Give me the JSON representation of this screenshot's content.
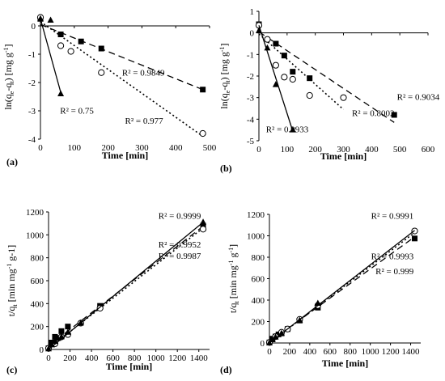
{
  "chart_data": [
    {
      "type": "scatter",
      "panel_label": "(a)",
      "xlabel": "Time [min]",
      "ylabel_pre": "ln(q",
      "ylabel_sub1": "e",
      "ylabel_mid": "-q",
      "ylabel_sub2": "t",
      "ylabel_post": ") [mg g",
      "ylabel_sup": "-1",
      "ylabel_end": "]",
      "xlim": [
        0,
        500
      ],
      "ylim": [
        -4,
        0.4
      ],
      "xticks": [
        0,
        100,
        200,
        300,
        400,
        500
      ],
      "yticks": [
        -4,
        -3,
        -2,
        -1,
        0
      ],
      "series": [
        {
          "marker": "square",
          "line": "dashed",
          "x": [
            0,
            60,
            120,
            180,
            480
          ],
          "y": [
            0.25,
            -0.3,
            -0.55,
            -0.8,
            -2.25
          ],
          "fit": [
            [
              0,
              0.05
            ],
            [
              480,
              -2.25
            ]
          ]
        },
        {
          "marker": "circle",
          "line": "dotted",
          "x": [
            0,
            60,
            90,
            180,
            480
          ],
          "y": [
            0.3,
            -0.7,
            -0.9,
            -1.65,
            -3.8
          ],
          "fit": [
            [
              0,
              0.15
            ],
            [
              480,
              -3.9
            ]
          ]
        },
        {
          "marker": "triangle",
          "line": "solid",
          "x": [
            0,
            30,
            60
          ],
          "y": [
            0.25,
            0.2,
            -2.4
          ],
          "fit": [
            [
              0,
              0.25
            ],
            [
              60,
              -2.35
            ]
          ]
        }
      ],
      "annotations": [
        {
          "text": "R² = 0.9849",
          "x": 385,
          "y": -1.75
        },
        {
          "text": "R² = 0.75",
          "x": 58,
          "y": -3.1
        },
        {
          "text": "R² = 0.977",
          "x": 250,
          "y": -3.45
        }
      ]
    },
    {
      "type": "scatter",
      "panel_label": "(b)",
      "xlabel": "Time [min]",
      "ylabel_pre": "ln(q",
      "ylabel_sub1": "e",
      "ylabel_mid": "-q",
      "ylabel_sub2": "t",
      "ylabel_post": ") [mg g",
      "ylabel_sup": "-1",
      "ylabel_end": "]",
      "xlim": [
        0,
        600
      ],
      "ylim": [
        -5,
        1
      ],
      "xticks": [
        0,
        100,
        200,
        300,
        400,
        500,
        600
      ],
      "yticks": [
        -5,
        -4,
        -3,
        -2,
        -1,
        0,
        1
      ],
      "series": [
        {
          "marker": "square",
          "line": "dashed",
          "x": [
            0,
            60,
            90,
            120,
            180,
            480
          ],
          "y": [
            0.4,
            -0.5,
            -1.05,
            -1.8,
            -2.1,
            -3.8
          ],
          "fit": [
            [
              0,
              0.05
            ],
            [
              480,
              -4.15
            ]
          ]
        },
        {
          "marker": "circle",
          "line": "dotted",
          "x": [
            0,
            30,
            60,
            90,
            120,
            180,
            300
          ],
          "y": [
            0.35,
            -0.3,
            -1.5,
            -2.05,
            -2.15,
            -2.9,
            -3.0
          ],
          "fit": [
            [
              0,
              -0.05
            ],
            [
              300,
              -3.55
            ]
          ]
        },
        {
          "marker": "triangle",
          "line": "solid",
          "x": [
            0,
            30,
            60,
            120
          ],
          "y": [
            0.1,
            -0.7,
            -2.4,
            -4.5
          ],
          "fit": [
            [
              0,
              0.35
            ],
            [
              120,
              -4.55
            ]
          ]
        }
      ],
      "annotations": [
        {
          "text": "R² = 0.9034",
          "x": 490,
          "y": -3.1
        },
        {
          "text": "R² = 0.8002",
          "x": 330,
          "y": -3.85
        },
        {
          "text": "R² = 0.9933",
          "x": 25,
          "y": -4.6
        }
      ]
    },
    {
      "type": "scatter",
      "panel_label": "(c)",
      "xlabel": "Time [min]",
      "ylabel_pre": "t/q",
      "ylabel_sub1": "t",
      "ylabel_mid": "",
      "ylabel_sub2": "",
      "ylabel_post": " [min mg",
      "ylabel_sup": "-1",
      "ylabel_end": " g-1]",
      "xlim": [
        0,
        1500
      ],
      "ylim": [
        0,
        1200
      ],
      "xticks": [
        0,
        200,
        400,
        600,
        800,
        1000,
        1200,
        1400
      ],
      "yticks": [
        0,
        200,
        400,
        600,
        800,
        1000,
        1200
      ],
      "series": [
        {
          "marker": "square",
          "line": "dashed",
          "x": [
            0,
            30,
            60,
            90,
            120,
            180,
            480,
            1440
          ],
          "y": [
            10,
            60,
            110,
            100,
            160,
            200,
            380,
            1080
          ],
          "fit": [
            [
              0,
              30
            ],
            [
              1440,
              1075
            ]
          ]
        },
        {
          "marker": "circle",
          "line": "dotted",
          "x": [
            0,
            60,
            120,
            180,
            300,
            480,
            1440
          ],
          "y": [
            10,
            50,
            110,
            130,
            230,
            360,
            1050
          ],
          "fit": [
            [
              0,
              10
            ],
            [
              1440,
              1060
            ]
          ]
        },
        {
          "marker": "triangle",
          "line": "solid",
          "x": [
            0,
            30,
            60,
            120,
            180,
            300,
            1440
          ],
          "y": [
            5,
            40,
            70,
            110,
            150,
            230,
            1110
          ],
          "fit": [
            [
              0,
              0
            ],
            [
              1440,
              1110
            ]
          ]
        }
      ],
      "annotations": [
        {
          "text": "R² = 0.9999",
          "x": 1420,
          "y": 1140
        },
        {
          "text": "R² = 0.9952",
          "x": 1420,
          "y": 890
        },
        {
          "text": "R² = 0.9987",
          "x": 1420,
          "y": 790
        }
      ]
    },
    {
      "type": "scatter",
      "panel_label": "(d)",
      "xlabel": "Time [min]",
      "ylabel_pre": "t/q",
      "ylabel_sub1": "t",
      "ylabel_mid": "",
      "ylabel_sub2": "",
      "ylabel_post": " [min mg",
      "ylabel_sup": "-1",
      "ylabel_end": " g",
      "ylabel_sup2": "-1",
      "ylabel_end2": "]",
      "xlim": [
        0,
        1500
      ],
      "ylim": [
        0,
        1200
      ],
      "xticks": [
        0,
        200,
        400,
        600,
        800,
        1000,
        1200,
        1400
      ],
      "yticks": [
        0,
        200,
        400,
        600,
        800,
        1000,
        1200
      ],
      "series": [
        {
          "marker": "square",
          "line": "dashed",
          "x": [
            0,
            30,
            60,
            90,
            120,
            180,
            300,
            480,
            1440
          ],
          "y": [
            5,
            40,
            60,
            80,
            90,
            130,
            210,
            330,
            975
          ],
          "fit": [
            [
              0,
              10
            ],
            [
              1440,
              990
            ]
          ]
        },
        {
          "marker": "circle",
          "line": "dotted",
          "x": [
            0,
            60,
            120,
            180,
            300,
            480,
            1440
          ],
          "y": [
            5,
            60,
            100,
            130,
            220,
            350,
            1045
          ],
          "fit": [
            [
              0,
              0
            ],
            [
              1440,
              1030
            ]
          ]
        },
        {
          "marker": "triangle",
          "line": "solid",
          "x": [
            0,
            30,
            60,
            120,
            300,
            480
          ],
          "y": [
            0,
            30,
            55,
            90,
            210,
            370
          ],
          "fit": [
            [
              0,
              0
            ],
            [
              1440,
              1050
            ]
          ]
        }
      ],
      "annotations": [
        {
          "text": "R² = 0.9991",
          "x": 1430,
          "y": 1160
        },
        {
          "text": "R² = 0.9993",
          "x": 1430,
          "y": 780
        },
        {
          "text": "R² = 0.999",
          "x": 1430,
          "y": 640
        }
      ]
    }
  ]
}
